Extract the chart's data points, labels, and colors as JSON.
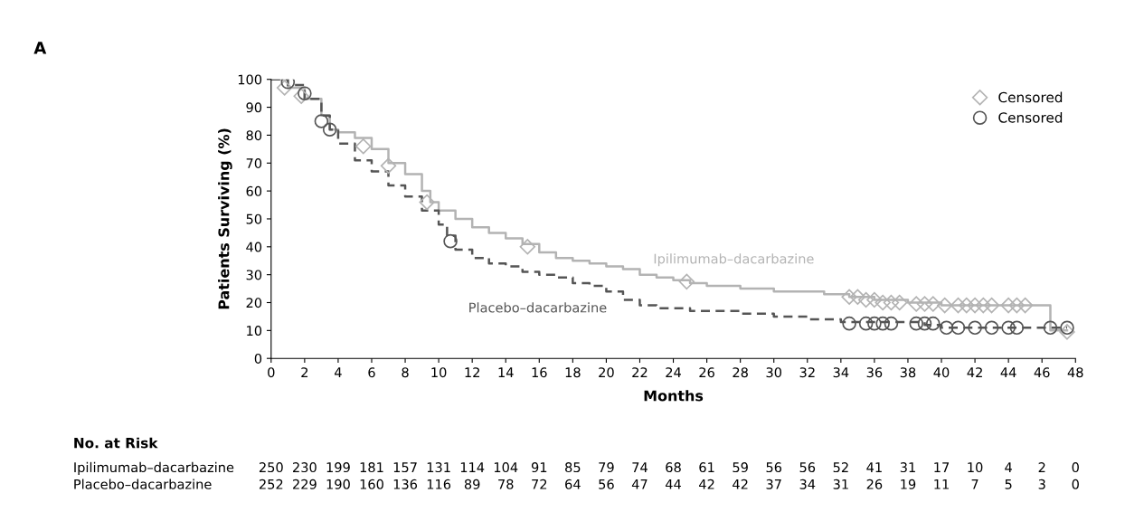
{
  "chart_data": {
    "type": "step",
    "xlabel": "Months",
    "ylabel": "Patients Surviving (%)",
    "xlim": [
      0,
      48
    ],
    "xticks": [
      0,
      2,
      4,
      6,
      8,
      10,
      12,
      14,
      16,
      18,
      20,
      22,
      24,
      26,
      28,
      30,
      32,
      34,
      36,
      38,
      40,
      42,
      44,
      46,
      48
    ],
    "ylim": [
      0,
      100
    ],
    "yticks": [
      0,
      10,
      20,
      30,
      40,
      50,
      60,
      70,
      80,
      90,
      100
    ],
    "grid": false,
    "legend": "top right",
    "series": [
      {
        "name": "Ipilimumab–dacarbazine",
        "color": "#b3b3b3",
        "line_style": "solid",
        "marker": "none",
        "x": [
          0,
          1,
          2,
          3,
          3.5,
          4,
          5,
          6,
          7,
          8,
          9,
          9.5,
          10,
          11,
          12,
          13,
          14,
          15,
          16,
          17,
          18,
          19,
          20,
          21,
          22,
          23,
          24,
          25,
          26,
          28,
          30,
          33,
          34.5,
          36,
          38,
          40,
          46.5,
          47.5
        ],
        "values": [
          100,
          97,
          93,
          87,
          82,
          81,
          79,
          75,
          70,
          66,
          60,
          56,
          53,
          50,
          47,
          45,
          43,
          41,
          38,
          36,
          35,
          34,
          33,
          32,
          30,
          29,
          28,
          27,
          26,
          25,
          24,
          23,
          22,
          21,
          20,
          19,
          10,
          10
        ]
      },
      {
        "name": "Placebo–dacarbazine",
        "color": "#555555",
        "line_style": "dashed",
        "marker": "none",
        "x": [
          0,
          1,
          2,
          3,
          3.5,
          4,
          5,
          6,
          7,
          8,
          9,
          10,
          10.5,
          11,
          12,
          13,
          14,
          15,
          16,
          17,
          18,
          19,
          20,
          21,
          22,
          23,
          25,
          28,
          30,
          32,
          34,
          39,
          40,
          47.5
        ],
        "values": [
          100,
          98,
          93,
          87,
          82,
          77,
          71,
          67,
          62,
          58,
          53,
          48,
          44,
          39,
          36,
          34,
          33,
          31,
          30,
          29,
          27,
          26,
          24,
          21,
          19,
          18,
          17,
          16,
          15,
          14,
          13,
          12,
          11,
          11
        ]
      },
      {
        "type": "scatter",
        "name": "Censored",
        "color": "#b3b3b3",
        "marker": "diamond",
        "x": [
          0.8,
          1.8,
          5.5,
          7,
          9.3,
          15.3,
          24.8,
          34.5,
          35,
          35.5,
          36,
          36.5,
          37,
          37.5,
          38.5,
          39,
          39.5,
          40.2,
          41,
          41.5,
          42,
          42.5,
          43,
          44,
          44.5,
          45,
          47.5
        ],
        "values": [
          97,
          94,
          76,
          69,
          56,
          40,
          27.5,
          22,
          22,
          21,
          21,
          20,
          20,
          20,
          19.5,
          19.5,
          19.5,
          19,
          19,
          19,
          19,
          19,
          19,
          19,
          19,
          19,
          9.5
        ]
      },
      {
        "type": "scatter",
        "name": "Censored",
        "color": "#555555",
        "marker": "circle",
        "x": [
          1,
          2,
          3,
          3.5,
          10.7,
          34.5,
          35.5,
          36,
          36.5,
          37,
          38.5,
          39,
          39.5,
          40.3,
          41,
          42,
          43,
          44,
          44.5,
          46.5,
          47.5
        ],
        "values": [
          99,
          95,
          85,
          82,
          42,
          12.5,
          12.5,
          12.5,
          12.5,
          12.5,
          12.5,
          12.5,
          12.5,
          11,
          11,
          11,
          11,
          11,
          11,
          11,
          11
        ]
      }
    ],
    "annotations": [
      "A",
      "No. at Risk",
      "Ipilimumab–dacarbazine",
      "250 230 199 181 157 131 114 104 91 85 79 74 68 61 59 56 56 52 41 31 17 10 4 2 0",
      "Placebo–dacarbazine",
      "252 229 190 160 136 116 89 78 72 64 56 47 44 42 42 37 34 31 26 19 11 7 5 3 0"
    ]
  }
}
